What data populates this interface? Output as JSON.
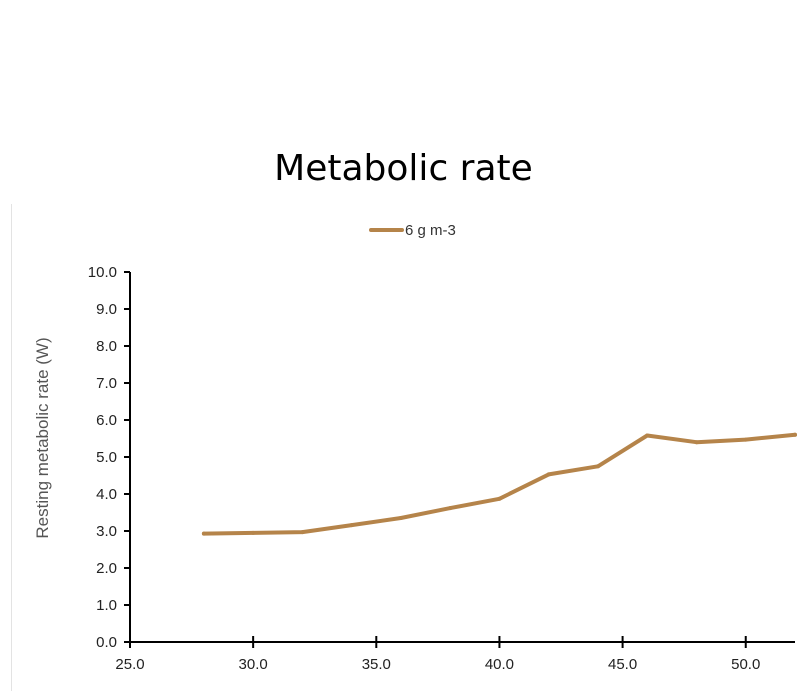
{
  "chart_data": {
    "type": "line",
    "title": "Metabolic rate",
    "xlabel": "",
    "ylabel": "Resting metabolic rate (W)",
    "xlim": [
      25,
      52
    ],
    "ylim": [
      0,
      10
    ],
    "x_ticks": [
      "25.0",
      "30.0",
      "35.0",
      "40.0",
      "45.0",
      "50.0"
    ],
    "y_ticks": [
      "0.0",
      "1.0",
      "2.0",
      "3.0",
      "4.0",
      "5.0",
      "6.0",
      "7.0",
      "8.0",
      "9.0",
      "10.0"
    ],
    "grid": false,
    "legend_position": "top",
    "series": [
      {
        "name": "6 g m-3",
        "color": "#b5844a",
        "x": [
          28,
          30,
          32,
          34,
          36,
          38,
          40,
          42,
          44,
          46,
          48,
          50,
          52
        ],
        "y": [
          2.93,
          2.95,
          2.97,
          3.16,
          3.35,
          3.62,
          3.87,
          4.53,
          4.75,
          5.58,
          5.4,
          5.47,
          5.6
        ]
      }
    ]
  }
}
